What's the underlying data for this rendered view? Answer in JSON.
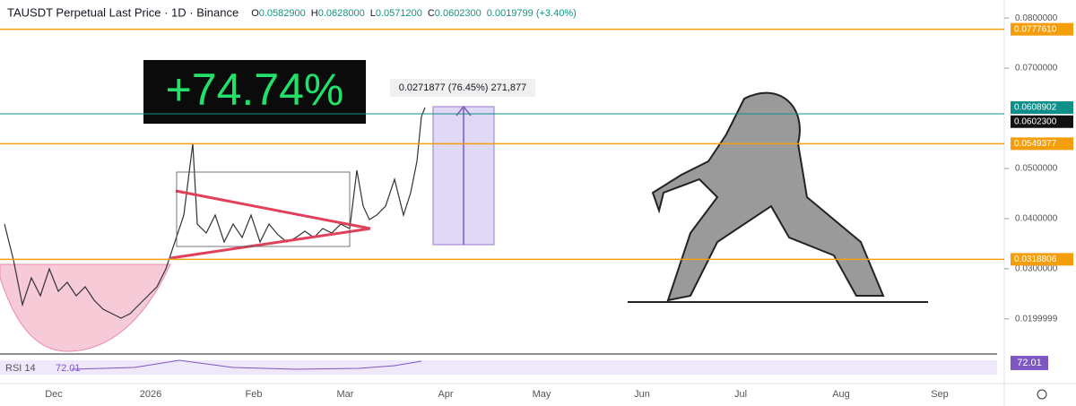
{
  "header": {
    "symbol": "TAUSDT Perpetual Last Price · 1D · Binance",
    "ohlc": [
      {
        "key": "O",
        "value": "0.0582900"
      },
      {
        "key": "H",
        "value": "0.0628000"
      },
      {
        "key": "L",
        "value": "0.0571200"
      },
      {
        "key": "C",
        "value": "0.0602300"
      }
    ],
    "change": "0.0019799 (+3.40%)"
  },
  "price_axis": {
    "ylim": [
      0.0121,
      0.0836
    ],
    "yticks": [
      {
        "value": 0.08,
        "label": "0.0800000"
      },
      {
        "value": 0.07,
        "label": "0.0700000"
      },
      {
        "value": 0.05,
        "label": "0.0500000"
      },
      {
        "value": 0.04,
        "label": "0.0400000"
      },
      {
        "value": 0.03,
        "label": "0.0300000"
      },
      {
        "value": 0.0199999,
        "label": "0.0199999"
      }
    ],
    "levels": [
      {
        "value": 0.077761,
        "label": "0.0777610",
        "color": "#f59e0b"
      },
      {
        "value": 0.0608902,
        "label": "0.0608902",
        "color": "#0e8f8a"
      },
      {
        "value": 0.06023,
        "label": "0.0602300",
        "color": "#111111"
      },
      {
        "value": 0.0549377,
        "label": "0.0549377",
        "color": "#f59e0b"
      },
      {
        "value": 0.0318806,
        "label": "0.0318806",
        "color": "#f59e0b"
      }
    ]
  },
  "time_axis": [
    "Dec",
    "2026",
    "Feb",
    "Mar",
    "Apr",
    "May",
    "Jun",
    "Jul",
    "Aug",
    "Sep"
  ],
  "annotation": "+74.74%",
  "measure_label": "0.0271877 (76.45%) 271,877",
  "rsi": {
    "label": "RSI 14",
    "value": "72.01",
    "tag": "72.01"
  }
}
